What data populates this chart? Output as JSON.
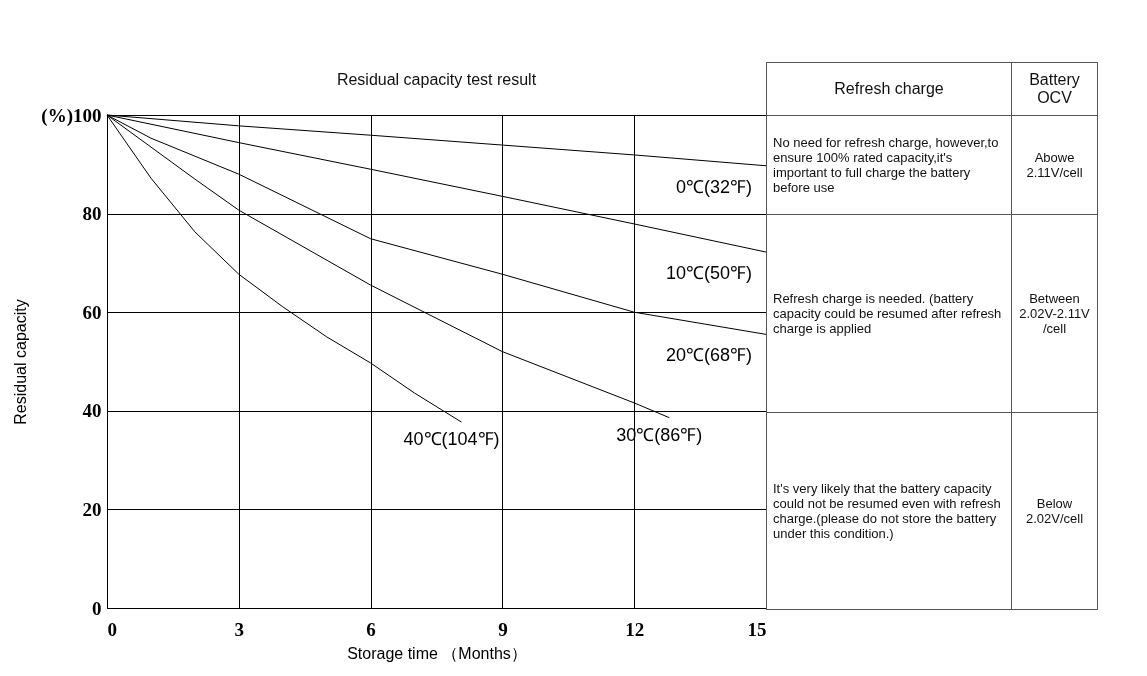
{
  "chart_data": {
    "type": "line",
    "title": "Residual capacity test result",
    "xlabel": "Storage time （Months）",
    "ylabel": "Residual capacity",
    "xlim": [
      0,
      15
    ],
    "xticks": [
      0,
      3,
      6,
      9,
      12,
      15
    ],
    "ylim": [
      0,
      100
    ],
    "yticks": [
      0,
      20,
      40,
      60,
      {
        "value": 100,
        "label": "(%)100"
      },
      80
    ],
    "grid": true,
    "legend": false,
    "marker": "none",
    "line_style": "solid",
    "series": [
      {
        "name": "0℃(32℉)",
        "color": "#000000",
        "x": [
          0,
          3,
          6,
          9,
          12,
          15
        ],
        "values": [
          100,
          97.8,
          95.9,
          93.9,
          91.9,
          89.7
        ]
      },
      {
        "name": "10℃(50℉)",
        "color": "#000000",
        "x": [
          0,
          3,
          6,
          9,
          12,
          15
        ],
        "values": [
          100,
          94.4,
          89,
          83.5,
          77.9,
          72.2
        ]
      },
      {
        "name": "20℃(68℉)",
        "color": "#000000",
        "x": [
          0,
          1,
          3,
          6,
          9,
          12,
          15
        ],
        "values": [
          100,
          95.3,
          88,
          74.9,
          67.7,
          60,
          55.5
        ]
      },
      {
        "name": "30℃(86℉)",
        "color": "#000000",
        "x": [
          0,
          1,
          2,
          3,
          6,
          9,
          12,
          12.8
        ],
        "values": [
          100,
          93.5,
          87,
          80.7,
          65.5,
          52,
          41.6,
          38.6
        ]
      },
      {
        "name": "40℃(104℉)",
        "color": "#000000",
        "x": [
          0,
          1,
          2,
          3,
          4,
          5,
          6,
          7,
          8.07
        ],
        "values": [
          100,
          87.2,
          76.3,
          67.7,
          61.1,
          55,
          49.7,
          43.6,
          37.7
        ]
      }
    ],
    "annotations": [
      "Refresh charge",
      "Battery OCV",
      "No need for refresh charge, however,to ensure 100% rated capacity,it's important to full charge the battery before use",
      "Abowe 2.11V/cell",
      "Refresh charge is needed. (battery capacity could be resumed after refresh charge is applied",
      "Between 2.02V-2.11V /cell",
      "It's very likely that the battery capacity could not be resumed even with refresh charge.(please do not store the battery under this condition.)",
      "Below 2.02V/cell"
    ]
  }
}
